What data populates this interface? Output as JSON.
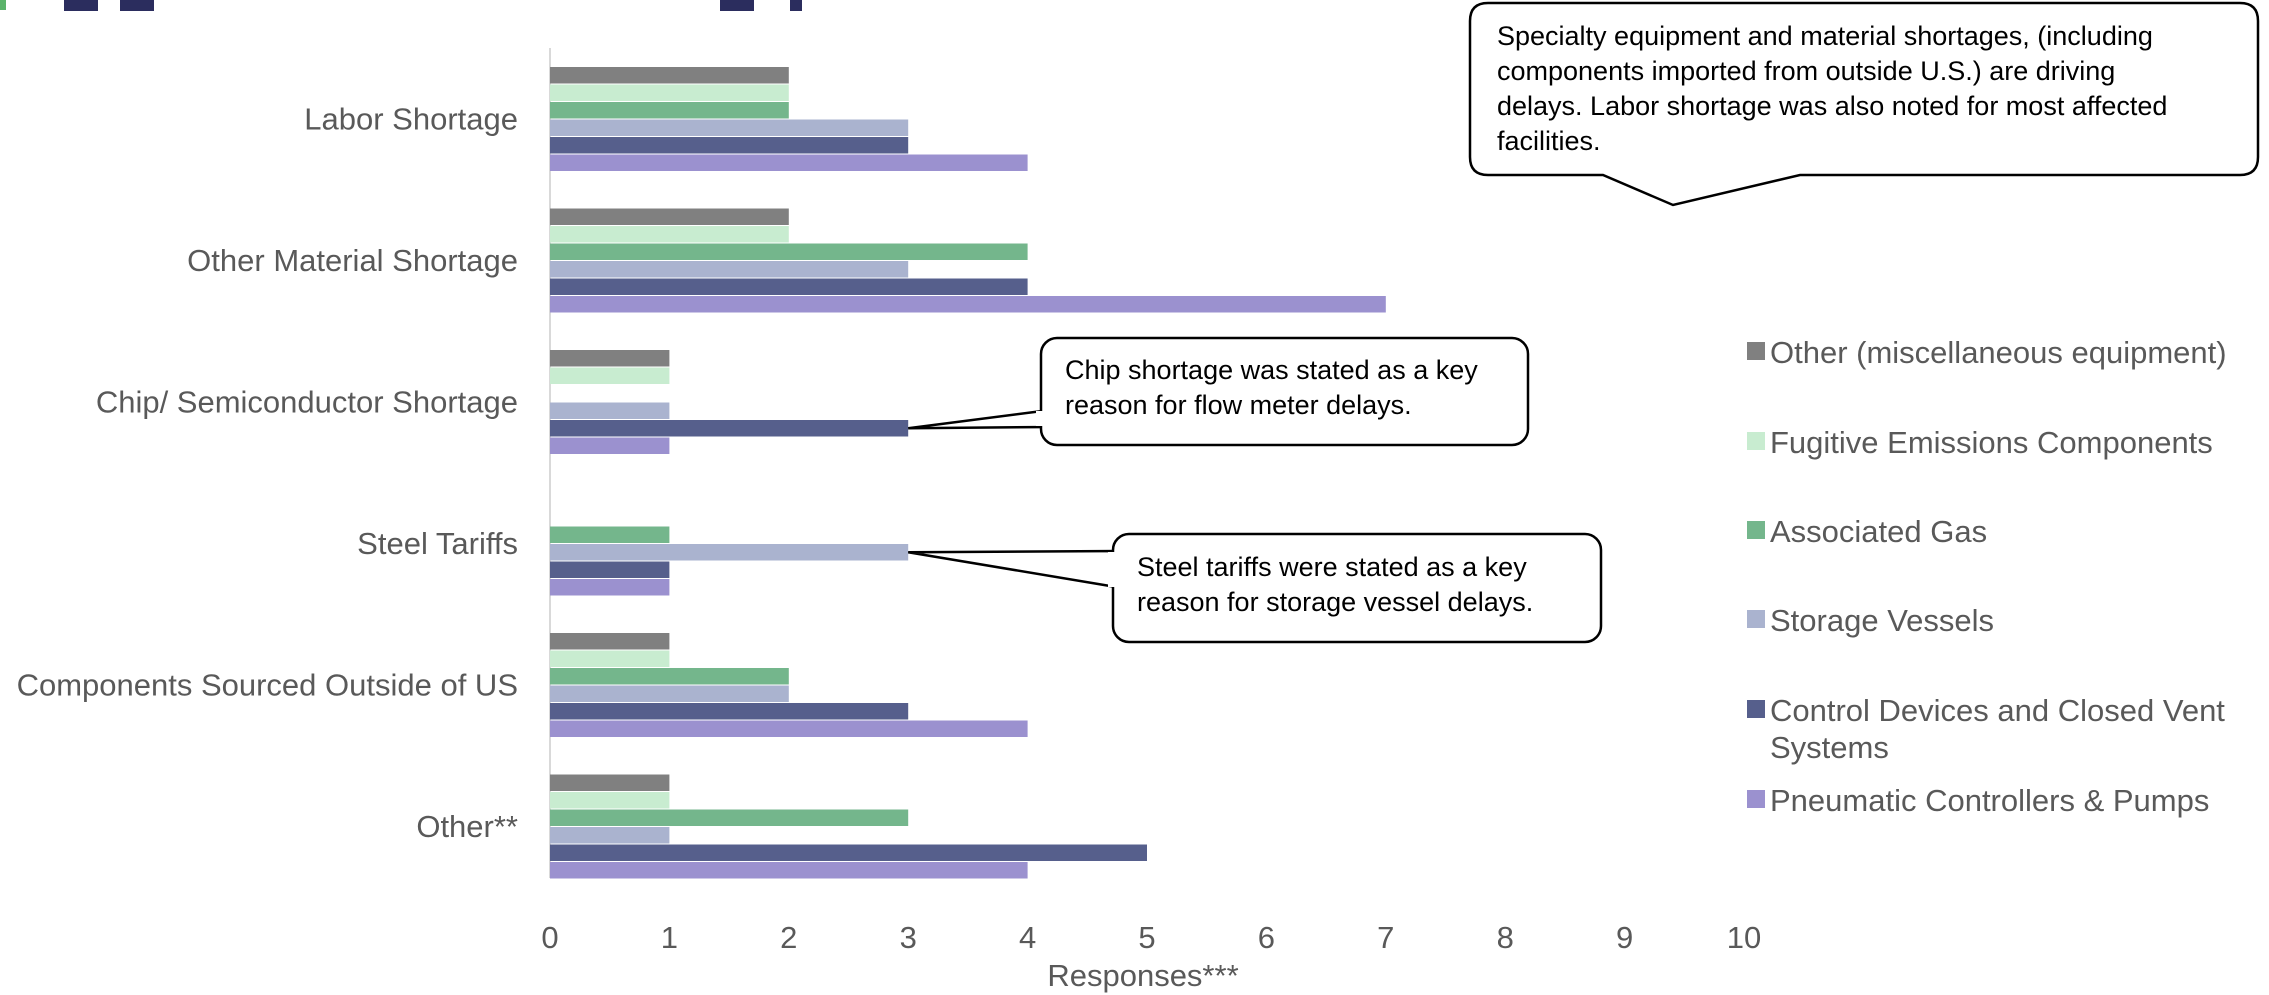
{
  "chart_data": {
    "type": "bar",
    "orientation": "horizontal",
    "categories": [
      "Labor Shortage",
      "Other Material Shortage",
      "Chip/ Semiconductor Shortage",
      "Steel Tariffs",
      "Components Sourced Outside of US",
      "Other**"
    ],
    "series": [
      {
        "name": "Other (miscellaneous equipment)",
        "color": "#808080",
        "values": [
          2,
          2,
          1,
          0,
          1,
          1
        ]
      },
      {
        "name": "Fugitive Emissions Components",
        "color": "#c8ecd0",
        "values": [
          2,
          2,
          1,
          0,
          1,
          1
        ]
      },
      {
        "name": "Associated Gas",
        "color": "#74b68c",
        "values": [
          2,
          4,
          0,
          1,
          2,
          3
        ]
      },
      {
        "name": "Storage Vessels",
        "color": "#aab3cf",
        "values": [
          3,
          3,
          1,
          3,
          2,
          1
        ]
      },
      {
        "name": "Control Devices and Closed Vent Systems",
        "color": "#565f8c",
        "values": [
          3,
          4,
          3,
          1,
          3,
          5
        ]
      },
      {
        "name": "Pneumatic Controllers & Pumps",
        "color": "#9b91cf",
        "values": [
          4,
          7,
          1,
          1,
          4,
          4
        ]
      }
    ],
    "xlabel": "Responses***",
    "ylabel": "",
    "xlim": [
      0,
      10
    ],
    "xticks": [
      "0",
      "1",
      "2",
      "3",
      "4",
      "5",
      "6",
      "7",
      "8",
      "9",
      "10"
    ],
    "grid": false,
    "legend_position": "right",
    "annotations": [
      {
        "text_lines": [
          "Specialty equipment and material shortages, (including",
          "components imported from outside U.S.) are driving",
          "delays. Labor shortage was also noted for most affected",
          "facilities."
        ]
      },
      {
        "text_lines": [
          "Chip shortage was stated as a key",
          "reason for flow meter delays."
        ],
        "points_to": {
          "category": "Chip/ Semiconductor Shortage",
          "series": "Control Devices and Closed Vent Systems",
          "value": 3
        }
      },
      {
        "text_lines": [
          "Steel tariffs were stated as a key",
          "reason for storage vessel delays."
        ],
        "points_to": {
          "category": "Steel Tariffs",
          "series": "Storage Vessels",
          "value": 3
        }
      }
    ]
  }
}
